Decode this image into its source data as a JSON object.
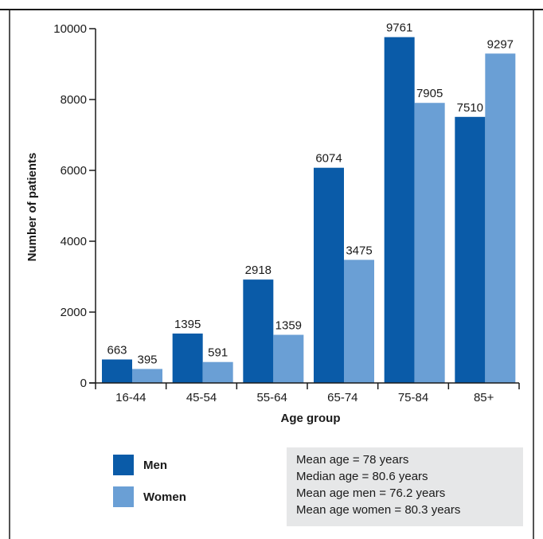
{
  "chart_data": {
    "type": "bar",
    "categories": [
      "16-44",
      "45-54",
      "55-64",
      "65-74",
      "75-84",
      "85+"
    ],
    "series": [
      {
        "name": "Men",
        "values": [
          663,
          1395,
          2918,
          6074,
          9761,
          7510
        ],
        "color": "#0a5ba8"
      },
      {
        "name": "Women",
        "values": [
          395,
          591,
          1359,
          3475,
          7905,
          9297
        ],
        "color": "#6a9fd5"
      }
    ],
    "xlabel": "Age group",
    "ylabel": "Number of patients",
    "ylim": [
      0,
      10000
    ],
    "yticks": [
      0,
      2000,
      4000,
      6000,
      8000,
      10000
    ],
    "grid": false,
    "legend_position": "bottom-left"
  },
  "legend": {
    "men": "Men",
    "women": "Women"
  },
  "stats": [
    "Mean age = 78 years",
    "Median age = 80.6 years",
    "Mean age men = 76.2 years",
    "Mean age women = 80.3 years"
  ]
}
